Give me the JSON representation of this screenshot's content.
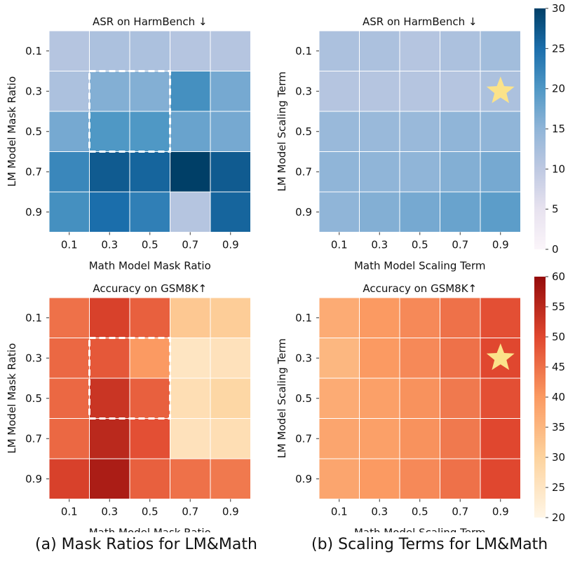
{
  "chart_data": [
    {
      "type": "heatmap",
      "title": "ASR on HarmBench ↓",
      "xlabel": "Math Model Mask Ratio",
      "ylabel": "LM Model Mask Ratio",
      "x_ticks": [
        "0.1",
        "0.3",
        "0.5",
        "0.7",
        "0.9"
      ],
      "y_ticks": [
        "0.1",
        "0.3",
        "0.5",
        "0.7",
        "0.9"
      ],
      "values": [
        [
          11,
          12,
          12,
          11,
          11
        ],
        [
          12,
          16,
          16,
          21,
          17
        ],
        [
          17,
          20,
          20,
          18,
          17
        ],
        [
          22,
          27,
          26,
          30,
          27
        ],
        [
          21,
          25,
          23,
          11,
          26
        ]
      ],
      "colormap": "blues",
      "vmin": 0,
      "vmax": 30,
      "highlight_box": {
        "rows": [
          1,
          2
        ],
        "cols": [
          1,
          2
        ]
      }
    },
    {
      "type": "heatmap",
      "title": "ASR on HarmBench ↓",
      "xlabel": "Math Model Scaling Term",
      "ylabel": "LM Model Scaling Term",
      "x_ticks": [
        "0.1",
        "0.3",
        "0.5",
        "0.7",
        "0.9"
      ],
      "y_ticks": [
        "0.1",
        "0.3",
        "0.5",
        "0.7",
        "0.9"
      ],
      "values": [
        [
          12,
          12,
          11,
          12,
          13
        ],
        [
          11,
          11,
          11,
          11,
          12
        ],
        [
          14,
          14,
          14,
          15,
          15
        ],
        [
          15,
          15,
          15,
          16,
          17
        ],
        [
          15,
          16,
          17,
          18,
          19
        ]
      ],
      "colormap": "blues",
      "vmin": 0,
      "vmax": 30,
      "star": {
        "row": 1,
        "col": 4
      },
      "colorbar": {
        "min": 0,
        "max": 30,
        "ticks": [
          "0",
          "5",
          "10",
          "15",
          "20",
          "25",
          "30"
        ]
      }
    },
    {
      "type": "heatmap",
      "title": "Accuracy on GSM8K↑",
      "xlabel": "Math Model Mask Ratio",
      "ylabel": "LM Model Mask Ratio",
      "x_ticks": [
        "0.1",
        "0.3",
        "0.5",
        "0.7",
        "0.9"
      ],
      "y_ticks": [
        "0.1",
        "0.3",
        "0.5",
        "0.7",
        "0.9"
      ],
      "values": [
        [
          45,
          51,
          47,
          32,
          31
        ],
        [
          46,
          48,
          40,
          25,
          26
        ],
        [
          46,
          53,
          47,
          27,
          29
        ],
        [
          46,
          55,
          49,
          26,
          27
        ],
        [
          51,
          57,
          47,
          45,
          44
        ]
      ],
      "colormap": "orrd",
      "vmin": 20,
      "vmax": 60,
      "highlight_box": {
        "rows": [
          1,
          2
        ],
        "cols": [
          1,
          2
        ]
      }
    },
    {
      "type": "heatmap",
      "title": "Accuracy on GSM8K↑",
      "xlabel": "Math Model Scaling Term",
      "ylabel": "LM Model Scaling Term",
      "x_ticks": [
        "0.1",
        "0.3",
        "0.5",
        "0.7",
        "0.9"
      ],
      "y_ticks": [
        "0.1",
        "0.3",
        "0.5",
        "0.7",
        "0.9"
      ],
      "values": [
        [
          37,
          40,
          42,
          45,
          49
        ],
        [
          35,
          40,
          42,
          45,
          50
        ],
        [
          37,
          39,
          41,
          44,
          49
        ],
        [
          38,
          39,
          41,
          44,
          50
        ],
        [
          38,
          40,
          42,
          45,
          50
        ]
      ],
      "colormap": "orrd",
      "vmin": 20,
      "vmax": 60,
      "star": {
        "row": 1,
        "col": 4
      },
      "colorbar": {
        "min": 20,
        "max": 60,
        "ticks": [
          "20",
          "25",
          "30",
          "35",
          "40",
          "45",
          "50",
          "55",
          "60"
        ]
      }
    }
  ],
  "captions": {
    "left": "(a) Mask Ratios for LM&Math",
    "right": "(b) Scaling Terms for LM&Math"
  }
}
